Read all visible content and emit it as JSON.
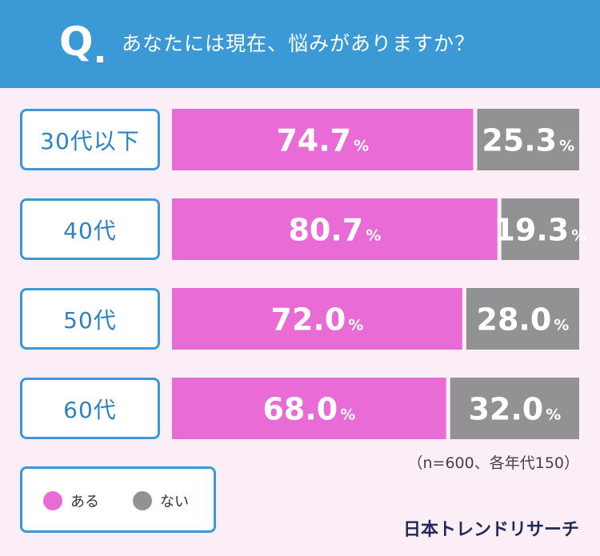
{
  "header": {
    "q_mark": "Q",
    "question": "あなたには現在、悩みがありますか？"
  },
  "chart_data": {
    "type": "bar",
    "orientation": "horizontal",
    "stacked": "100%",
    "categories": [
      "30代以下",
      "40代",
      "50代",
      "60代"
    ],
    "series": [
      {
        "name": "ある",
        "color": "#e96bd6",
        "values": [
          74.7,
          80.7,
          72.0,
          68.0
        ]
      },
      {
        "name": "ない",
        "color": "#929294",
        "values": [
          25.3,
          19.3,
          28.0,
          32.0
        ]
      }
    ],
    "value_suffix": "%",
    "note": "（n=600、各年代150）"
  },
  "legend": {
    "items": [
      {
        "label": "ある",
        "color": "#e96bd6"
      },
      {
        "label": "ない",
        "color": "#929294"
      }
    ]
  },
  "brand": "日本トレンドリサーチ"
}
